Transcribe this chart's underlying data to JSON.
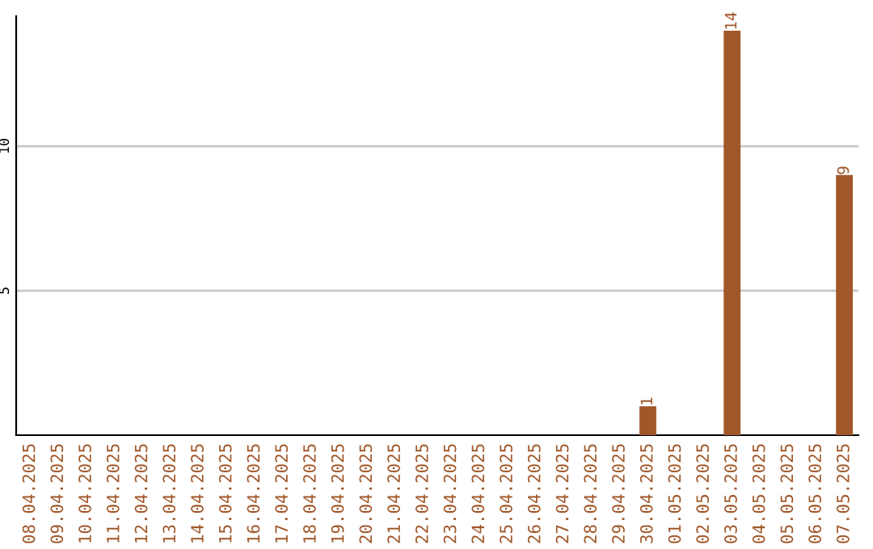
{
  "chart_data": {
    "type": "bar",
    "categories": [
      "08.04.2025",
      "09.04.2025",
      "10.04.2025",
      "11.04.2025",
      "12.04.2025",
      "13.04.2025",
      "14.04.2025",
      "15.04.2025",
      "16.04.2025",
      "17.04.2025",
      "18.04.2025",
      "19.04.2025",
      "20.04.2025",
      "21.04.2025",
      "22.04.2025",
      "23.04.2025",
      "24.04.2025",
      "25.04.2025",
      "26.04.2025",
      "27.04.2025",
      "28.04.2025",
      "29.04.2025",
      "30.04.2025",
      "01.05.2025",
      "02.05.2025",
      "03.05.2025",
      "04.05.2025",
      "05.05.2025",
      "06.05.2025",
      "07.05.2025"
    ],
    "values": [
      0,
      0,
      0,
      0,
      0,
      0,
      0,
      0,
      0,
      0,
      0,
      0,
      0,
      0,
      0,
      0,
      0,
      0,
      0,
      0,
      0,
      0,
      1,
      0,
      0,
      14,
      0,
      0,
      0,
      9
    ],
    "value_labels": [
      null,
      null,
      null,
      null,
      null,
      null,
      null,
      null,
      null,
      null,
      null,
      null,
      null,
      null,
      null,
      null,
      null,
      null,
      null,
      null,
      null,
      null,
      "1",
      null,
      null,
      "14",
      null,
      null,
      null,
      "9"
    ],
    "color": "#a0582a",
    "ylim": [
      0,
      14.5
    ],
    "yticks": [
      5,
      10
    ],
    "grid": "y",
    "legend": false
  }
}
